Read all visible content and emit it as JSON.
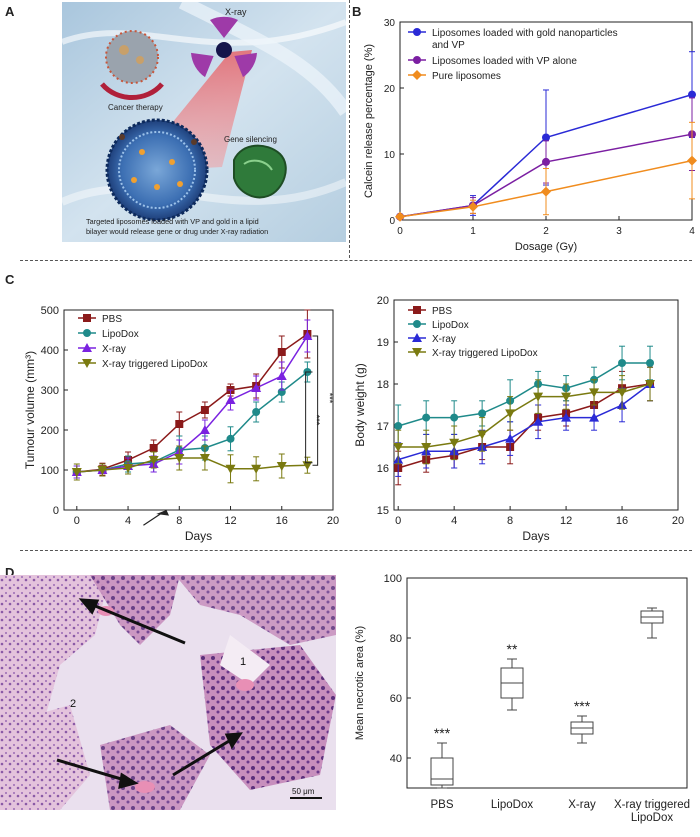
{
  "panel_labels": {
    "a": "A",
    "b": "B",
    "c": "C",
    "d": "D"
  },
  "panel_a": {
    "xray_label": "X-ray",
    "cancer_label": "Cancer therapy",
    "gene_label": "Gene silencing",
    "caption_line1": "Targeted liposomes loaded with VP and gold in a lipid",
    "caption_line2": "bilayer would release gene or drug under X-ray radiation"
  },
  "panel_d_image": {
    "scale_label": "50 μm",
    "region1": "1",
    "region2": "2"
  },
  "chart_data": [
    {
      "id": "B",
      "type": "line",
      "ylabel": "Calcein release percentage (%)",
      "xlabel": "Dosage (Gy)",
      "xlim": [
        0,
        4
      ],
      "ylim": [
        0,
        30
      ],
      "xticks": [
        0,
        1,
        2,
        3,
        4
      ],
      "yticks": [
        0,
        10,
        20,
        30
      ],
      "legend": "top-left",
      "series": [
        {
          "name": "Liposomes loaded with gold nanoparticles",
          "name2": "and VP",
          "color": "#2a2ad6",
          "marker": "circle",
          "x": [
            0,
            1,
            2,
            4
          ],
          "y": [
            0.5,
            2.2,
            12.5,
            19
          ],
          "err": [
            0.3,
            1.5,
            7.2,
            6.5
          ]
        },
        {
          "name": "Liposomes loaded with VP alone",
          "color": "#7b1fa2",
          "marker": "circle",
          "x": [
            0,
            1,
            2,
            4
          ],
          "y": [
            0.5,
            2.2,
            8.8,
            13
          ],
          "err": [
            0.3,
            1.2,
            3.2,
            5.5
          ]
        },
        {
          "name": "Pure liposomes",
          "color": "#f08c1e",
          "marker": "diamond",
          "x": [
            0,
            1,
            2,
            4
          ],
          "y": [
            0.5,
            2.0,
            4.3,
            9
          ],
          "err": [
            0.3,
            1.0,
            3.5,
            5.8
          ]
        }
      ]
    },
    {
      "id": "C1",
      "type": "line",
      "ylabel": "Tumour volume (mm³)",
      "xlabel": "Days",
      "xlim": [
        -1,
        20
      ],
      "ylim": [
        0,
        500
      ],
      "xticks": [
        0,
        4,
        8,
        12,
        16,
        20
      ],
      "yticks": [
        0,
        100,
        200,
        300,
        400,
        500
      ],
      "legend": "top-left",
      "significance": [
        "***",
        "***"
      ],
      "series": [
        {
          "name": "PBS",
          "color": "#8b1a1a",
          "marker": "square",
          "x": [
            0,
            2,
            4,
            6,
            8,
            10,
            12,
            14,
            16,
            18
          ],
          "y": [
            95,
            102,
            125,
            155,
            215,
            250,
            300,
            310,
            395,
            440
          ],
          "err": [
            15,
            15,
            20,
            20,
            30,
            20,
            15,
            30,
            40,
            60
          ]
        },
        {
          "name": "LipoDox",
          "color": "#1f8a8a",
          "marker": "circle",
          "x": [
            0,
            2,
            4,
            6,
            8,
            10,
            12,
            14,
            16,
            18
          ],
          "y": [
            95,
            100,
            115,
            120,
            150,
            155,
            178,
            245,
            295,
            345
          ],
          "err": [
            15,
            15,
            20,
            25,
            35,
            30,
            30,
            25,
            25,
            25
          ]
        },
        {
          "name": "X-ray",
          "color": "#7a22e0",
          "marker": "triangle",
          "x": [
            0,
            2,
            4,
            6,
            8,
            10,
            12,
            14,
            16,
            18
          ],
          "y": [
            95,
            100,
            110,
            115,
            145,
            200,
            275,
            305,
            335,
            435
          ],
          "err": [
            15,
            15,
            20,
            20,
            30,
            25,
            25,
            30,
            35,
            40
          ]
        },
        {
          "name": "X-ray triggered LipoDox",
          "color": "#7a7a10",
          "marker": "tri-down",
          "x": [
            0,
            2,
            4,
            6,
            8,
            10,
            12,
            14,
            16,
            18
          ],
          "y": [
            95,
            100,
            105,
            125,
            130,
            130,
            103,
            103,
            110,
            112
          ],
          "err": [
            20,
            15,
            15,
            20,
            30,
            30,
            35,
            30,
            30,
            20
          ]
        }
      ]
    },
    {
      "id": "C2",
      "type": "line",
      "ylabel": "Body weight (g)",
      "xlabel": "Days",
      "xlim": [
        -0.3,
        20
      ],
      "ylim": [
        15,
        20
      ],
      "xticks": [
        0,
        4,
        8,
        12,
        16,
        20
      ],
      "yticks": [
        15,
        16,
        17,
        18,
        19,
        20
      ],
      "legend": "top-left",
      "series": [
        {
          "name": "PBS",
          "color": "#8b1a1a",
          "marker": "square",
          "x": [
            0,
            2,
            4,
            6,
            8,
            10,
            12,
            14,
            16,
            18
          ],
          "y": [
            16.0,
            16.2,
            16.3,
            16.5,
            16.5,
            17.2,
            17.3,
            17.5,
            17.9,
            18.0
          ],
          "err": [
            0.4,
            0.3,
            0.3,
            0.3,
            0.4,
            0.3,
            0.3,
            0.3,
            0.4,
            0.4
          ]
        },
        {
          "name": "LipoDox",
          "color": "#1f8a8a",
          "marker": "circle",
          "x": [
            0,
            2,
            4,
            6,
            8,
            10,
            12,
            14,
            16,
            18
          ],
          "y": [
            17.0,
            17.2,
            17.2,
            17.3,
            17.6,
            18.0,
            17.9,
            18.1,
            18.5,
            18.5
          ],
          "err": [
            0.5,
            0.4,
            0.4,
            0.3,
            0.5,
            0.3,
            0.3,
            0.3,
            0.4,
            0.4
          ]
        },
        {
          "name": "X-ray",
          "color": "#2a2ad6",
          "marker": "triangle",
          "x": [
            0,
            2,
            4,
            6,
            8,
            10,
            12,
            14,
            16,
            18
          ],
          "y": [
            16.2,
            16.4,
            16.4,
            16.5,
            16.7,
            17.1,
            17.2,
            17.2,
            17.5,
            18.0
          ],
          "err": [
            0.4,
            0.4,
            0.4,
            0.4,
            0.4,
            0.4,
            0.3,
            0.3,
            0.4,
            0.4
          ]
        },
        {
          "name": "X-ray triggered LipoDox",
          "color": "#7a7a10",
          "marker": "tri-down",
          "x": [
            0,
            2,
            4,
            6,
            8,
            10,
            12,
            14,
            16,
            18
          ],
          "y": [
            16.5,
            16.5,
            16.6,
            16.8,
            17.3,
            17.7,
            17.7,
            17.8,
            17.8,
            18.0
          ],
          "err": [
            0.4,
            0.4,
            0.4,
            0.4,
            0.4,
            0.4,
            0.3,
            0.3,
            0.4,
            0.4
          ]
        }
      ]
    },
    {
      "id": "D",
      "type": "box",
      "ylabel": "Mean necrotic area (%)",
      "ylim": [
        30,
        100
      ],
      "yticks": [
        40,
        60,
        80,
        100
      ],
      "categories": [
        "PBS",
        "LipoDox",
        "X-ray",
        "X-ray triggered LipoDox"
      ],
      "category_lines": [
        [
          "PBS"
        ],
        [
          "LipoDox"
        ],
        [
          "X-ray"
        ],
        [
          "X-ray triggered",
          "LipoDox"
        ]
      ],
      "boxes": [
        {
          "min": 30,
          "q1": 31,
          "median": 33,
          "q3": 40,
          "max": 45,
          "sig": "***"
        },
        {
          "min": 56,
          "q1": 60,
          "median": 65,
          "q3": 70,
          "max": 73,
          "sig": "**"
        },
        {
          "min": 45,
          "q1": 48,
          "median": 50,
          "q3": 52,
          "max": 54,
          "sig": "***"
        },
        {
          "min": 80,
          "q1": 85,
          "median": 87,
          "q3": 89,
          "max": 90,
          "sig": ""
        }
      ]
    }
  ]
}
